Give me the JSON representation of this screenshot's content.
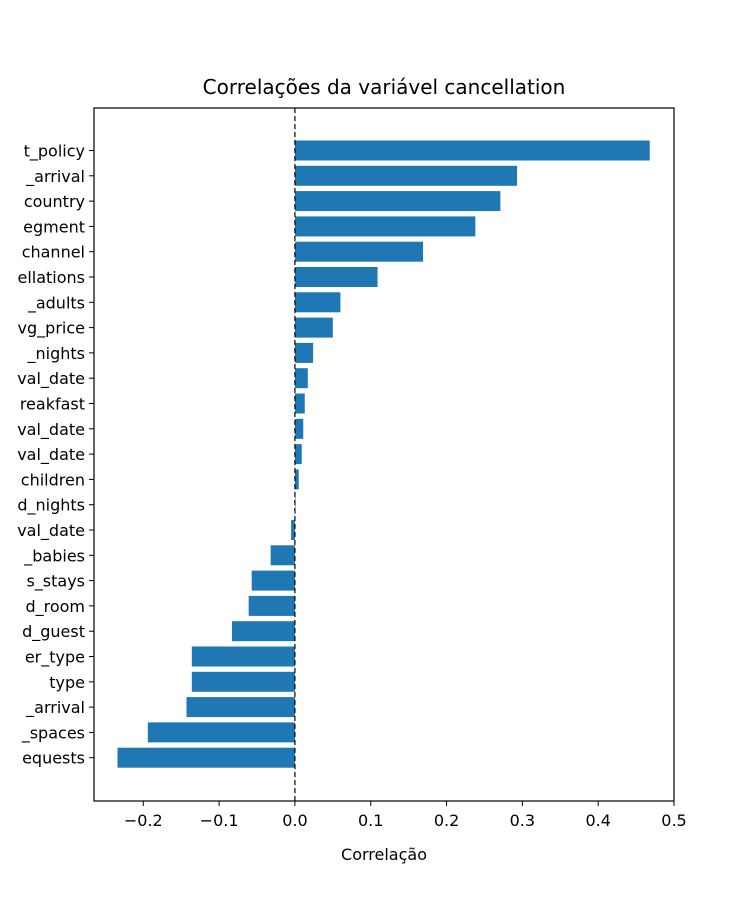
{
  "chart_data": {
    "type": "bar",
    "orientation": "horizontal",
    "title": "Correlações da variável cancellation",
    "xlabel": "Correlação",
    "ylabel": "",
    "xlim": [
      -0.265,
      0.5
    ],
    "xticks": [
      -0.2,
      -0.1,
      0.0,
      0.1,
      0.2,
      0.3,
      0.4,
      0.5
    ],
    "xtick_labels": [
      "−0.2",
      "−0.1",
      "0.0",
      "0.1",
      "0.2",
      "0.3",
      "0.4",
      "0.5"
    ],
    "bar_color": "#1f77b4",
    "reference_line": {
      "x": 0,
      "style": "dashed",
      "color": "#000000"
    },
    "grid": false,
    "categories": [
      "t_policy",
      "_arrival",
      "country",
      "egment",
      "channel",
      "ellations",
      "_adults",
      "vg_price",
      "_nights",
      "val_date",
      "reakfast",
      "val_date",
      "val_date",
      "children",
      "d_nights",
      "val_date",
      "_babies",
      "s_stays",
      "d_room",
      "d_guest",
      "er_type",
      "type",
      "_arrival",
      "_spaces",
      "equests"
    ],
    "values": [
      0.468,
      0.293,
      0.271,
      0.238,
      0.169,
      0.109,
      0.06,
      0.05,
      0.024,
      0.017,
      0.013,
      0.011,
      0.009,
      0.005,
      0.0,
      -0.005,
      -0.032,
      -0.057,
      -0.061,
      -0.083,
      -0.136,
      -0.136,
      -0.143,
      -0.194,
      -0.234
    ]
  }
}
